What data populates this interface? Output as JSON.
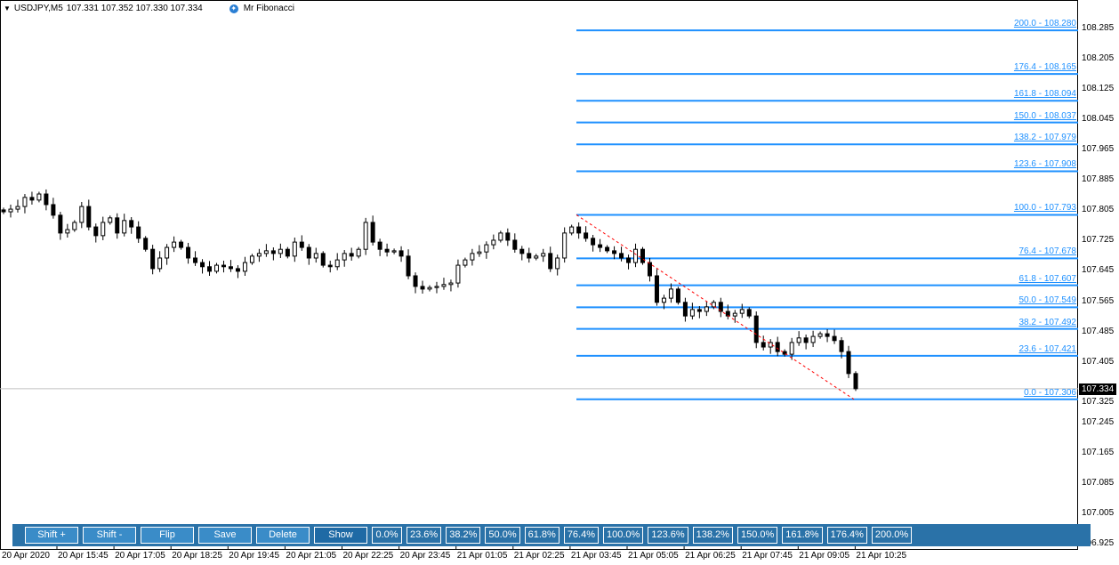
{
  "header": {
    "symbol": "USDJPY,M5",
    "ohlc": "107.331 107.352 107.330 107.334",
    "indicator": "Mr Fibonacci",
    "indicator_icon": "star-icon"
  },
  "colors": {
    "fib": "#1e90ff",
    "trend": "#ff0000",
    "panel": "#2a72a8",
    "bid_line": "#c0c0c0"
  },
  "price_axis": [
    "108.285",
    "108.205",
    "108.125",
    "108.045",
    "107.965",
    "107.885",
    "107.805",
    "107.725",
    "107.645",
    "107.565",
    "107.485",
    "107.405",
    "107.325",
    "107.245",
    "107.165",
    "107.085",
    "107.005",
    "106.925"
  ],
  "current_price": "107.334",
  "time_axis": [
    "20 Apr 2020",
    "20 Apr 15:45",
    "20 Apr 17:05",
    "20 Apr 18:25",
    "20 Apr 19:45",
    "20 Apr 21:05",
    "20 Apr 22:25",
    "20 Apr 23:45",
    "21 Apr 01:05",
    "21 Apr 02:25",
    "21 Apr 03:45",
    "21 Apr 05:05",
    "21 Apr 06:25",
    "21 Apr 07:45",
    "21 Apr 09:05",
    "21 Apr 10:25"
  ],
  "fib_levels": [
    {
      "label": "200.0 - 108.280",
      "price": 108.28
    },
    {
      "label": "176.4 - 108.165",
      "price": 108.165
    },
    {
      "label": "161.8 - 108.094",
      "price": 108.094
    },
    {
      "label": "150.0 - 108.037",
      "price": 108.037
    },
    {
      "label": "138.2 - 107.979",
      "price": 107.979
    },
    {
      "label": "123.6 - 107.908",
      "price": 107.908
    },
    {
      "label": "100.0 - 107.793",
      "price": 107.793
    },
    {
      "label": "76.4 - 107.678",
      "price": 107.678
    },
    {
      "label": "61.8 - 107.607",
      "price": 107.607
    },
    {
      "label": "50.0 - 107.549",
      "price": 107.549
    },
    {
      "label": "38.2 - 107.492",
      "price": 107.492
    },
    {
      "label": "23.6 - 107.421",
      "price": 107.421
    },
    {
      "label": "0.0 - 107.306",
      "price": 107.306
    }
  ],
  "closes": [
    107.801,
    107.808,
    107.815,
    107.839,
    107.832,
    107.848,
    107.82,
    107.792,
    107.745,
    107.754,
    107.773,
    107.815,
    107.761,
    107.738,
    107.773,
    107.785,
    107.745,
    107.778,
    107.761,
    107.731,
    107.702,
    107.651,
    107.679,
    107.707,
    107.721,
    107.707,
    107.679,
    107.667,
    107.656,
    107.644,
    107.66,
    107.656,
    107.651,
    107.644,
    107.667,
    107.684,
    107.691,
    107.698,
    107.691,
    107.702,
    107.684,
    107.721,
    107.707,
    107.679,
    107.691,
    107.66,
    107.656,
    107.674,
    107.691,
    107.684,
    107.702,
    107.773,
    107.721,
    107.702,
    107.695,
    107.698,
    107.684,
    107.632,
    107.604,
    107.597,
    107.601,
    107.604,
    107.609,
    107.613,
    107.66,
    107.674,
    107.691,
    107.695,
    107.714,
    107.726,
    107.745,
    107.726,
    107.702,
    107.691,
    107.679,
    107.684,
    107.691,
    107.651,
    107.679,
    107.745,
    107.761,
    107.745,
    107.731,
    107.714,
    107.707,
    107.698,
    107.691,
    107.679,
    107.667,
    107.702,
    107.667,
    107.632,
    107.562,
    107.573,
    107.597,
    107.562,
    107.526,
    107.543,
    107.538,
    107.55,
    107.562,
    107.538,
    107.526,
    107.533,
    107.543,
    107.526,
    107.456,
    107.444,
    107.456,
    107.432,
    107.425,
    107.456,
    107.468,
    107.456,
    107.472,
    107.479,
    107.472,
    107.461,
    107.432,
    107.374,
    107.334
  ],
  "panel": {
    "buttons": [
      "Shift +",
      "Shift -",
      "Flip",
      "Save",
      "Delete",
      "Show"
    ],
    "levels": [
      "0.0%",
      "23.6%",
      "38.2%",
      "50.0%",
      "61.8%",
      "76.4%",
      "100.0%",
      "123.6%",
      "138.2%",
      "150.0%",
      "161.8%",
      "176.4%",
      "200.0%"
    ]
  }
}
